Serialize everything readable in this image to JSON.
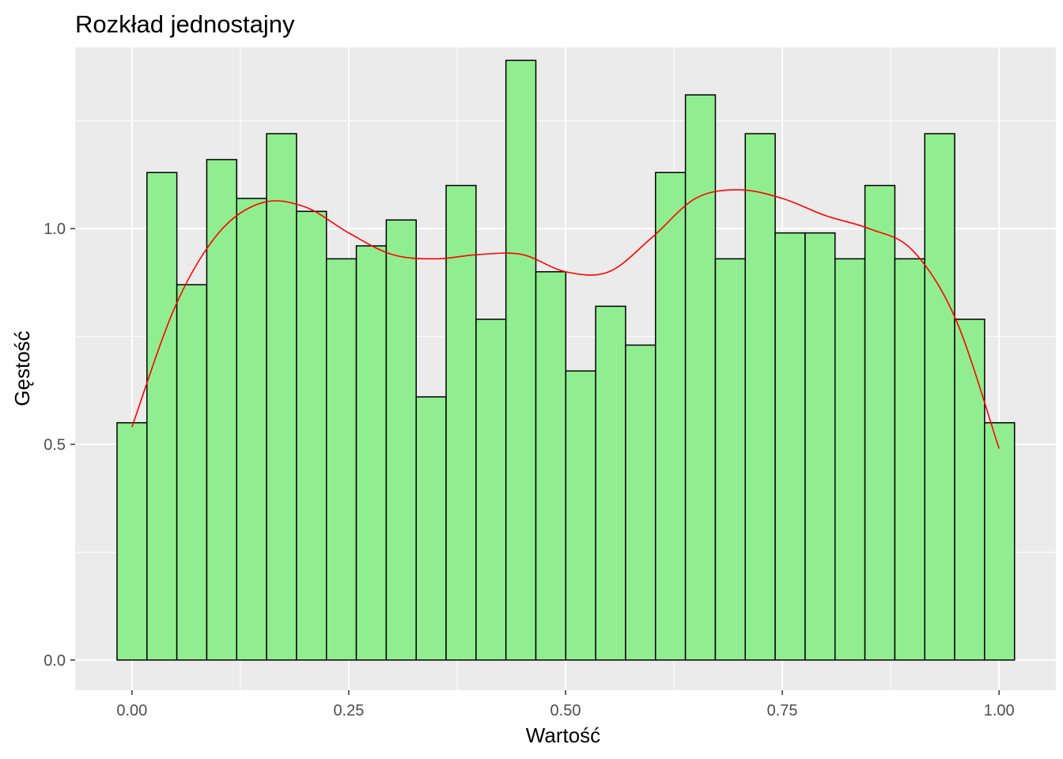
{
  "chart_data": {
    "type": "bar",
    "title": "Rozkład jednostajny",
    "xlabel": "Wartość",
    "ylabel": "Gęstość",
    "xlim": [
      -0.0655,
      1.0655
    ],
    "ylim": [
      -0.07,
      1.42
    ],
    "grid": true,
    "x_ticks": [
      0.0,
      0.25,
      0.5,
      0.75,
      1.0
    ],
    "x_tick_labels": [
      "0.00",
      "0.25",
      "0.50",
      "0.75",
      "1.00"
    ],
    "y_ticks": [
      0.0,
      0.5,
      1.0
    ],
    "y_tick_labels": [
      "0.0",
      "0.5",
      "1.0"
    ],
    "bin_width": 0.0345,
    "bin_start": -0.0172,
    "values": [
      0.55,
      1.13,
      0.87,
      1.16,
      1.07,
      1.22,
      1.04,
      0.93,
      0.96,
      1.02,
      0.61,
      1.1,
      0.79,
      1.39,
      0.9,
      0.67,
      0.82,
      0.73,
      1.13,
      1.31,
      0.93,
      1.22,
      0.99,
      0.99,
      0.93,
      1.1,
      0.93,
      1.22,
      0.79,
      0.55
    ],
    "bar_fill": "#90EE90",
    "bar_outline": "#000000",
    "panel_background": "#EBEBEB",
    "density_color": "#FF0000",
    "density_curve": {
      "x": [
        0.0,
        0.05,
        0.1,
        0.15,
        0.2,
        0.25,
        0.3,
        0.35,
        0.4,
        0.45,
        0.5,
        0.55,
        0.6,
        0.65,
        0.7,
        0.75,
        0.8,
        0.85,
        0.9,
        0.95,
        1.0
      ],
      "y": [
        0.54,
        0.82,
        0.99,
        1.06,
        1.05,
        0.99,
        0.94,
        0.93,
        0.94,
        0.94,
        0.9,
        0.9,
        0.98,
        1.07,
        1.09,
        1.07,
        1.03,
        1.0,
        0.95,
        0.79,
        0.49
      ]
    }
  }
}
